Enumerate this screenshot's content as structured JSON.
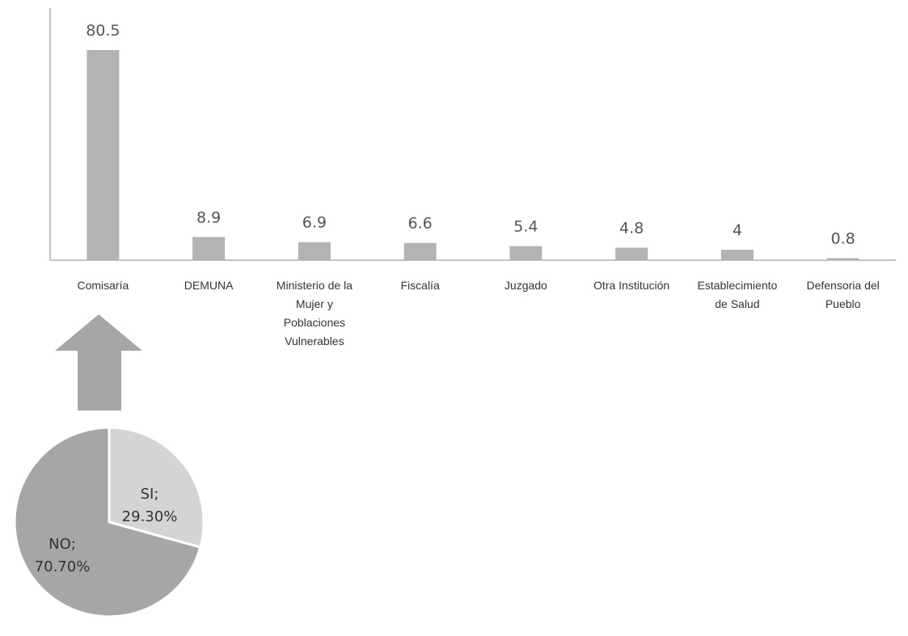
{
  "chart_data": [
    {
      "type": "bar",
      "categories": [
        [
          "Comisaría"
        ],
        [
          "DEMUNA"
        ],
        [
          "Ministerio de la",
          "Mujer y",
          "Poblaciones",
          "Vulnerables"
        ],
        [
          "Fiscalía"
        ],
        [
          "Juzgado"
        ],
        [
          "Otra Institución"
        ],
        [
          "Establecimiento",
          "de Salud"
        ],
        [
          "Defensoria del",
          "Pueblo"
        ]
      ],
      "values": [
        80.5,
        8.9,
        6.9,
        6.6,
        5.4,
        4.8,
        4,
        0.8
      ],
      "value_labels": [
        "80.5",
        "8.9",
        "6.9",
        "6.6",
        "5.4",
        "4.8",
        "4",
        "0.8"
      ],
      "ylim": [
        0,
        80.5
      ],
      "bar_color": "#b3b3b3",
      "axis_color": "#b0b0b0",
      "grid": false
    },
    {
      "type": "pie",
      "slices": [
        {
          "label": "SI",
          "value": 29.3,
          "text": [
            "SI;",
            "29.30%"
          ],
          "color": "#d4d4d4"
        },
        {
          "label": "NO",
          "value": 70.7,
          "text": [
            "NO;",
            "70.70%"
          ],
          "color": "#a6a6a6"
        }
      ]
    }
  ],
  "arrow": {
    "direction": "up",
    "color": "#a6a6a6"
  }
}
